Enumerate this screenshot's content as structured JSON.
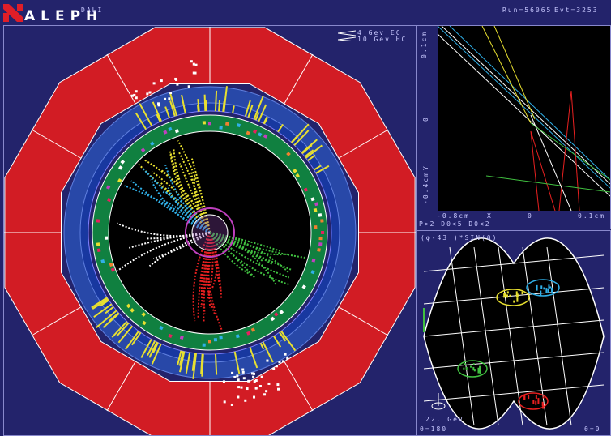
{
  "header": {
    "brand": "ALEPH",
    "subtitle": "DALI",
    "run": "Run=56065",
    "event": "Evt=3253",
    "logo_icon": "aleph-logo-icon"
  },
  "main_view": {
    "legend": [
      "4  Gev EC",
      "10 Gev HC"
    ]
  },
  "vertex_view": {
    "y_labels": [
      "0.1cm",
      "0",
      "Y",
      "-0.4cm"
    ],
    "x_labels": [
      "-0.8cm",
      "X",
      "0",
      "0.1cm"
    ],
    "footer": "P>2  D0<5  D0<2"
  },
  "projection_view": {
    "title": "(φ-43 )*SIN(θ)",
    "scale": "22. GeV",
    "left_label": "θ=180",
    "right_label": "θ=0"
  },
  "colors": {
    "background": "#23236b",
    "hcal": "#d21c24",
    "ecal": "#2848a8",
    "itc": "#108040",
    "track_yellow": "#e8e030",
    "track_cyan": "#30b0e8",
    "track_red": "#e82020",
    "track_green": "#40c040"
  }
}
